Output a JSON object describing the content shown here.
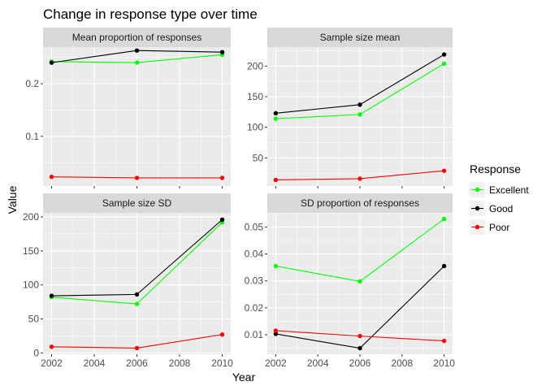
{
  "chart_data": [
    {
      "type": "line",
      "title": "Mean proportion of responses",
      "x": [
        2002,
        2006,
        2010
      ],
      "ylim": [
        0.0055,
        0.2695
      ],
      "yticks": [
        0.1,
        0.2
      ],
      "ytick_labels": [
        "0.1",
        "0.2"
      ],
      "series": [
        {
          "name": "Excellent",
          "values": [
            0.242,
            0.24,
            0.255
          ]
        },
        {
          "name": "Good",
          "values": [
            0.24,
            0.263,
            0.26
          ]
        },
        {
          "name": "Poor",
          "values": [
            0.023,
            0.021,
            0.021
          ]
        }
      ]
    },
    {
      "type": "line",
      "title": "Sample size mean",
      "x": [
        2002,
        2006,
        2010
      ],
      "ylim": [
        4,
        231
      ],
      "yticks": [
        50,
        100,
        150,
        200
      ],
      "ytick_labels": [
        "50",
        "100",
        "150",
        "200"
      ],
      "series": [
        {
          "name": "Excellent",
          "values": [
            114,
            121,
            204
          ]
        },
        {
          "name": "Good",
          "values": [
            123,
            137,
            219
          ]
        },
        {
          "name": "Poor",
          "values": [
            14,
            16,
            29
          ]
        }
      ]
    },
    {
      "type": "line",
      "title": "Sample size SD",
      "x": [
        2002,
        2006,
        2010
      ],
      "ylim": [
        -2,
        206
      ],
      "yticks": [
        0,
        50,
        100,
        150,
        200
      ],
      "ytick_labels": [
        "0",
        "50",
        "100",
        "150",
        "200"
      ],
      "series": [
        {
          "name": "Excellent",
          "values": [
            82,
            72,
            192
          ]
        },
        {
          "name": "Good",
          "values": [
            84,
            86,
            196
          ]
        },
        {
          "name": "Poor",
          "values": [
            9,
            7,
            27
          ]
        }
      ]
    },
    {
      "type": "line",
      "title": "SD proportion of responses",
      "x": [
        2002,
        2006,
        2010
      ],
      "ylim": [
        0.00275,
        0.05525
      ],
      "yticks": [
        0.01,
        0.02,
        0.03,
        0.04,
        0.05
      ],
      "ytick_labels": [
        "0.01",
        "0.02",
        "0.03",
        "0.04",
        "0.05"
      ],
      "series": [
        {
          "name": "Excellent",
          "values": [
            0.0355,
            0.0298,
            0.053
          ]
        },
        {
          "name": "Good",
          "values": [
            0.0103,
            0.005,
            0.0355
          ]
        },
        {
          "name": "Poor",
          "values": [
            0.0115,
            0.0095,
            0.0077
          ]
        }
      ]
    }
  ],
  "figure": {
    "title": "Change in response type over time",
    "xlabel": "Year",
    "ylabel": "Value",
    "xlim": [
      2001.6,
      2010.4
    ],
    "xticks": [
      2002,
      2004,
      2006,
      2008,
      2010
    ],
    "xtick_labels": [
      "2002",
      "2004",
      "2006",
      "2008",
      "2010"
    ],
    "grid": true
  },
  "legend": {
    "title": "Response",
    "placement": "right",
    "items": [
      {
        "label": "Excellent",
        "color": "#00ff00"
      },
      {
        "label": "Good",
        "color": "#000000"
      },
      {
        "label": "Poor",
        "color": "#ff0000"
      }
    ]
  },
  "colors": {
    "panel_bg": "#ebebeb",
    "strip_bg": "#d9d9d9",
    "grid": "#ffffff"
  }
}
